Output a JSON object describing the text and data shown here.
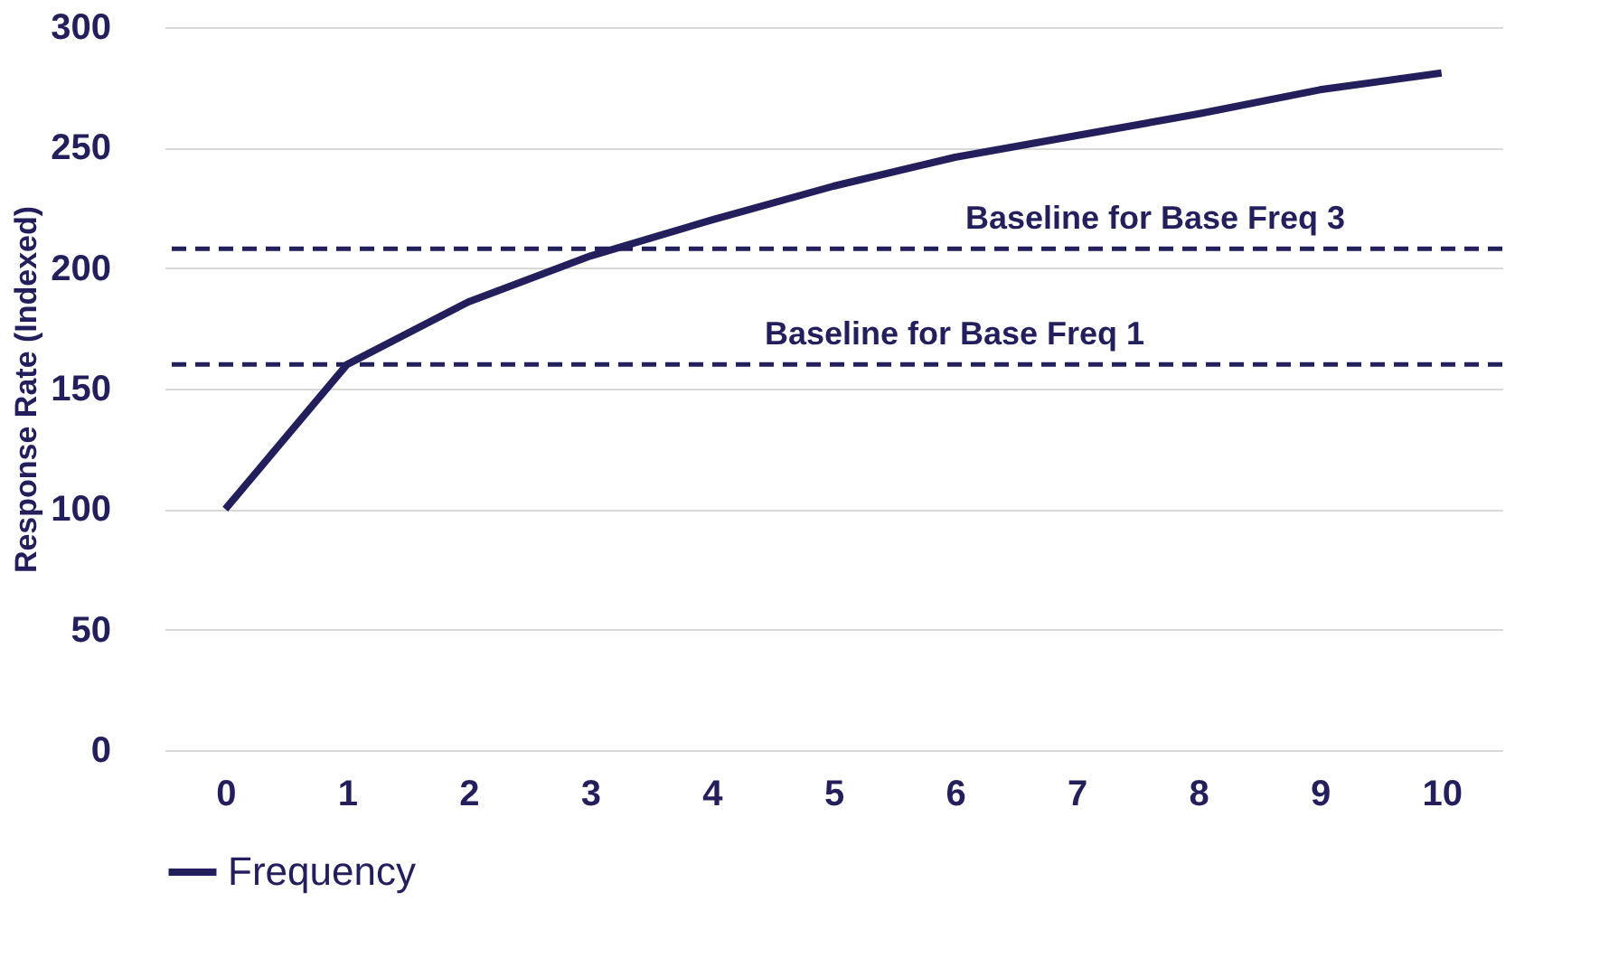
{
  "chart_data": {
    "type": "line",
    "ylabel": "Response Rate (Indexed)",
    "categories": [
      "0",
      "1",
      "2",
      "3",
      "4",
      "5",
      "6",
      "7",
      "8",
      "9",
      "10"
    ],
    "series": [
      {
        "name": "Frequency",
        "color": "#231f5c",
        "values": [
          100,
          160,
          186,
          205,
          220,
          234,
          246,
          255,
          264,
          274,
          281
        ]
      }
    ],
    "ylim": [
      0,
      300
    ],
    "yticks": [
      0,
      50,
      100,
      150,
      200,
      250,
      300
    ],
    "grid": "y",
    "legend": "bottom",
    "marker": "none",
    "line_style": "solid",
    "ref_lines": [
      {
        "axis": "y",
        "value": 208,
        "label": "Baseline for Base Freq 3",
        "color": "#231f5c",
        "line_style": "dashed"
      },
      {
        "axis": "y",
        "value": 160,
        "label": "Baseline for Base Freq 1",
        "color": "#231f5c",
        "line_style": "dashed"
      }
    ]
  }
}
